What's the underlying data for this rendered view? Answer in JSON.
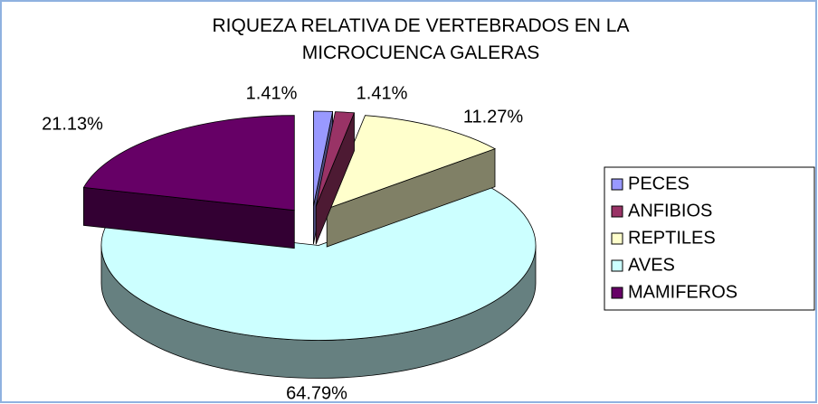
{
  "chart_data": {
    "type": "pie3d",
    "title": "RIQUEZA RELATIVA DE VERTEBRADOS EN LA MICROCUENCA GALERAS",
    "categories": [
      "PECES",
      "ANFIBIOS",
      "REPTILES",
      "AVES",
      "MAMIFEROS"
    ],
    "values": [
      1.41,
      1.41,
      11.27,
      64.79,
      21.13
    ],
    "value_labels": [
      "1.41%",
      "1.41%",
      "11.27%",
      "64.79%",
      "21.13%"
    ],
    "colors": [
      "#9999ff",
      "#993366",
      "#ffffcc",
      "#ccffff",
      "#660066"
    ],
    "legend": "right"
  }
}
